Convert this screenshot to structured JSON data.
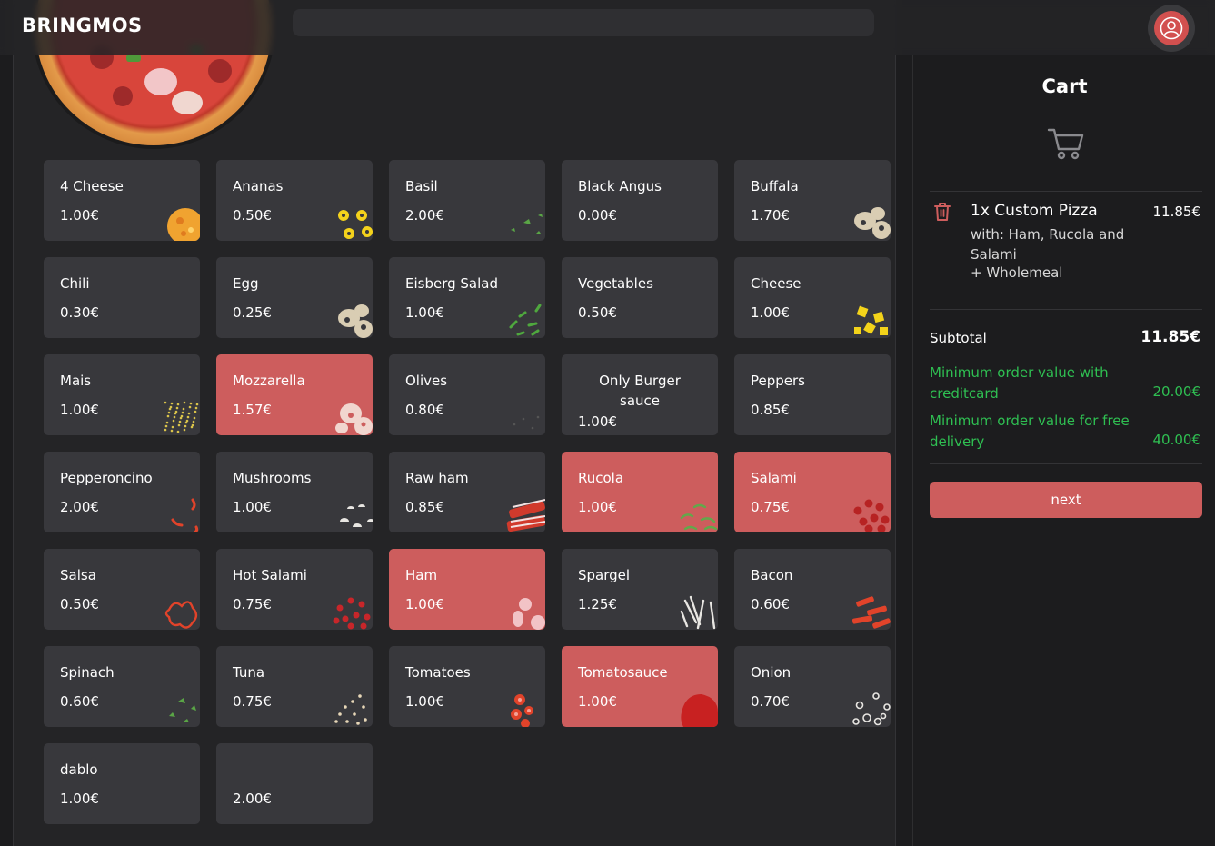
{
  "header": {
    "brand": "BRINGMOS"
  },
  "ingredients": [
    {
      "name": "4 Cheese",
      "price": "1.00€",
      "selected": false,
      "art": "cheese-4"
    },
    {
      "name": "Ananas",
      "price": "0.50€",
      "selected": false,
      "art": "ananas"
    },
    {
      "name": "Basil",
      "price": "2.00€",
      "selected": false,
      "art": "basil"
    },
    {
      "name": "Black Angus",
      "price": "0.00€",
      "selected": false,
      "art": "none"
    },
    {
      "name": "Buffala",
      "price": "1.70€",
      "selected": false,
      "art": "buffala"
    },
    {
      "name": "Chili",
      "price": "0.30€",
      "selected": false,
      "art": "none"
    },
    {
      "name": "Egg",
      "price": "0.25€",
      "selected": false,
      "art": "egg"
    },
    {
      "name": "Eisberg Salad",
      "price": "1.00€",
      "selected": false,
      "art": "salad"
    },
    {
      "name": "Vegetables",
      "price": "0.50€",
      "selected": false,
      "art": "none"
    },
    {
      "name": "Cheese",
      "price": "1.00€",
      "selected": false,
      "art": "cheese"
    },
    {
      "name": "Mais",
      "price": "1.00€",
      "selected": false,
      "art": "mais"
    },
    {
      "name": "Mozzarella",
      "price": "1.57€",
      "selected": true,
      "art": "mozzarella"
    },
    {
      "name": "Olives",
      "price": "0.80€",
      "selected": false,
      "art": "olives"
    },
    {
      "name": "Only Burger sauce",
      "price": "1.00€",
      "selected": false,
      "art": "none",
      "two_line": true
    },
    {
      "name": "Peppers",
      "price": "0.85€",
      "selected": false,
      "art": "none"
    },
    {
      "name": "Pepperoncino",
      "price": "2.00€",
      "selected": false,
      "art": "pepperoncino"
    },
    {
      "name": "Mushrooms",
      "price": "1.00€",
      "selected": false,
      "art": "mushrooms"
    },
    {
      "name": "Raw ham",
      "price": "0.85€",
      "selected": false,
      "art": "rawham"
    },
    {
      "name": "Rucola",
      "price": "1.00€",
      "selected": true,
      "art": "rucola"
    },
    {
      "name": "Salami",
      "price": "0.75€",
      "selected": true,
      "art": "salami"
    },
    {
      "name": "Salsa",
      "price": "0.50€",
      "selected": false,
      "art": "salsa"
    },
    {
      "name": "Hot Salami",
      "price": "0.75€",
      "selected": false,
      "art": "hotsalami"
    },
    {
      "name": "Ham",
      "price": "1.00€",
      "selected": true,
      "art": "ham"
    },
    {
      "name": "Spargel",
      "price": "1.25€",
      "selected": false,
      "art": "spargel"
    },
    {
      "name": "Bacon",
      "price": "0.60€",
      "selected": false,
      "art": "bacon"
    },
    {
      "name": "Spinach",
      "price": "0.60€",
      "selected": false,
      "art": "spinach"
    },
    {
      "name": "Tuna",
      "price": "0.75€",
      "selected": false,
      "art": "tuna"
    },
    {
      "name": "Tomatoes",
      "price": "1.00€",
      "selected": false,
      "art": "tomatoes"
    },
    {
      "name": "Tomatosauce",
      "price": "1.00€",
      "selected": true,
      "art": "tomatosauce"
    },
    {
      "name": "Onion",
      "price": "0.70€",
      "selected": false,
      "art": "onion"
    },
    {
      "name": "dablo",
      "price": "1.00€",
      "selected": false,
      "art": "none"
    },
    {
      "name": "",
      "price": "2.00€",
      "selected": false,
      "art": "none"
    }
  ],
  "cart": {
    "title": "Cart",
    "item": {
      "title": "1x Custom Pizza",
      "price": "11.85€",
      "description": "with: Ham, Rucola and Salami",
      "extra": "+ Wholemeal"
    },
    "subtotal_label": "Subtotal",
    "subtotal_value": "11.85€",
    "min_creditcard_label": "Minimum order value with creditcard",
    "min_creditcard_value": "20.00€",
    "min_free_delivery_label": "Minimum order value for free delivery",
    "min_free_delivery_value": "40.00€",
    "next_label": "next"
  },
  "colors": {
    "accent": "#cd5d5d",
    "success": "#2fbf52",
    "card": "#38383c"
  }
}
